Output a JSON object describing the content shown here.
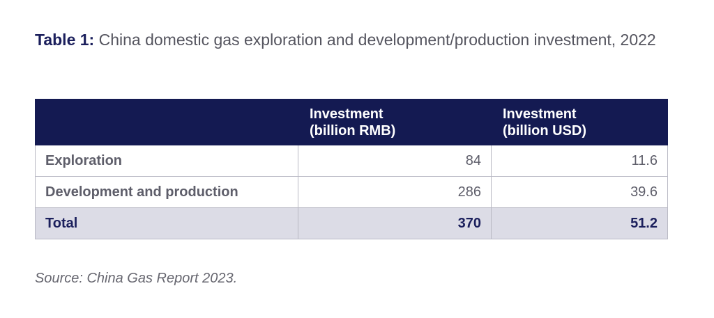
{
  "caption": {
    "label": "Table 1:",
    "text": " China domestic gas exploration and development/production investment, 2022"
  },
  "table": {
    "headers": [
      "",
      "Investment\n(billion RMB)",
      "Investment\n(billion USD)"
    ],
    "header_lines": {
      "col2_line1": "Investment",
      "col2_line2": "(billion RMB)",
      "col3_line1": "Investment",
      "col3_line2": "(billion USD)"
    },
    "rows": [
      {
        "label": "Exploration",
        "rmb": "84",
        "usd": "11.6"
      },
      {
        "label": "Development and production",
        "rmb": "286",
        "usd": "39.6"
      }
    ],
    "total": {
      "label": "Total",
      "rmb": "370",
      "usd": "51.2"
    }
  },
  "source": "Source: China Gas Report 2023.",
  "colors": {
    "header_bg": "#141a52",
    "total_bg": "#dcdce6",
    "title_label": "#1b1f5c"
  }
}
